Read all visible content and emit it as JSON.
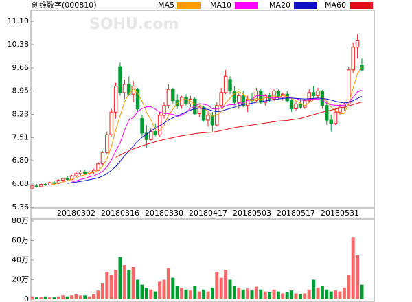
{
  "chart_data": [
    {
      "type": "candlestick",
      "title": "创维数字(000810)",
      "watermark": "SOHU.com",
      "categories": [
        null,
        null,
        null,
        null,
        null,
        null,
        null,
        null,
        null,
        null,
        "20180302",
        null,
        null,
        null,
        null,
        null,
        null,
        null,
        null,
        null,
        "20180316",
        null,
        null,
        null,
        null,
        null,
        null,
        null,
        null,
        null,
        "20180330",
        null,
        null,
        null,
        null,
        null,
        null,
        null,
        null,
        null,
        "20180417",
        null,
        null,
        null,
        null,
        null,
        null,
        null,
        null,
        null,
        "20180503",
        null,
        null,
        null,
        null,
        null,
        null,
        null,
        null,
        null,
        "20180517",
        null,
        null,
        null,
        null,
        null,
        null,
        null,
        null,
        null,
        "20180531",
        null,
        null,
        null,
        null,
        null
      ],
      "open": [
        5.95,
        6.02,
        6.0,
        6.07,
        6.05,
        6.12,
        6.1,
        6.2,
        6.25,
        6.22,
        6.33,
        6.4,
        6.45,
        6.4,
        6.45,
        6.5,
        6.7,
        7.05,
        7.6,
        8.3,
        9.7,
        8.9,
        9.15,
        8.85,
        9.0,
        8.1,
        7.65,
        7.45,
        7.7,
        7.6,
        8.2,
        8.5,
        9.0,
        8.65,
        8.5,
        8.75,
        8.55,
        8.7,
        8.25,
        8.45,
        8.05,
        8.2,
        7.9,
        8.5,
        8.9,
        9.3,
        8.95,
        8.6,
        8.8,
        8.5,
        8.7,
        8.65,
        8.95,
        8.6,
        8.8,
        8.7,
        8.95,
        8.75,
        8.85,
        8.65,
        8.4,
        8.55,
        8.45,
        8.65,
        8.9,
        8.8,
        8.95,
        8.5,
        8.05,
        7.95,
        8.3,
        8.45,
        8.55,
        9.6,
        10.3,
        9.75
      ],
      "high": [
        6.05,
        6.08,
        6.1,
        6.12,
        6.15,
        6.18,
        6.22,
        6.28,
        6.32,
        6.36,
        6.45,
        6.5,
        6.52,
        6.48,
        6.55,
        6.75,
        7.1,
        7.7,
        8.4,
        9.2,
        9.82,
        9.3,
        9.4,
        9.25,
        9.05,
        8.2,
        7.9,
        7.8,
        7.95,
        8.3,
        8.6,
        9.15,
        9.05,
        8.85,
        8.8,
        8.85,
        8.8,
        8.75,
        8.5,
        8.5,
        8.3,
        8.3,
        8.6,
        9.05,
        9.6,
        9.4,
        9.1,
        8.9,
        8.95,
        8.8,
        8.9,
        9.05,
        9.0,
        8.85,
        8.9,
        9.0,
        9.0,
        8.9,
        8.95,
        8.7,
        8.6,
        8.7,
        8.7,
        9.0,
        9.1,
        9.05,
        8.98,
        8.6,
        8.2,
        8.4,
        8.55,
        8.6,
        9.7,
        10.45,
        10.7,
        9.95
      ],
      "low": [
        5.9,
        5.97,
        5.98,
        6.02,
        6.03,
        6.08,
        6.08,
        6.15,
        6.18,
        6.2,
        6.28,
        6.35,
        6.38,
        6.36,
        6.4,
        6.48,
        6.65,
        7.0,
        7.55,
        8.1,
        8.8,
        8.7,
        8.8,
        8.6,
        8.3,
        7.55,
        7.2,
        7.4,
        7.55,
        7.55,
        8.1,
        8.4,
        8.55,
        8.4,
        8.4,
        8.5,
        8.45,
        8.2,
        8.15,
        8.0,
        7.85,
        7.7,
        7.85,
        8.4,
        8.85,
        8.85,
        8.5,
        8.4,
        8.45,
        8.3,
        8.55,
        8.6,
        8.55,
        8.5,
        8.6,
        8.65,
        8.7,
        8.65,
        8.6,
        8.3,
        8.35,
        8.4,
        8.4,
        8.6,
        8.7,
        8.75,
        8.4,
        7.9,
        7.7,
        7.9,
        8.2,
        8.35,
        8.5,
        9.5,
        9.95,
        9.55
      ],
      "close": [
        6.02,
        6.0,
        6.07,
        6.05,
        6.12,
        6.1,
        6.2,
        6.25,
        6.22,
        6.33,
        6.4,
        6.45,
        6.4,
        6.45,
        6.5,
        6.7,
        7.05,
        7.6,
        8.3,
        9.1,
        8.9,
        9.15,
        8.85,
        9.1,
        8.4,
        7.65,
        7.45,
        7.7,
        7.6,
        8.2,
        8.5,
        9.0,
        8.65,
        8.5,
        8.75,
        8.55,
        8.7,
        8.25,
        8.45,
        8.05,
        8.2,
        7.9,
        8.5,
        8.9,
        9.4,
        8.95,
        8.6,
        8.8,
        8.5,
        8.7,
        8.65,
        8.95,
        8.6,
        8.8,
        8.7,
        8.95,
        8.75,
        8.85,
        8.65,
        8.4,
        8.55,
        8.45,
        8.65,
        8.9,
        8.8,
        8.95,
        8.5,
        8.05,
        7.95,
        8.3,
        8.45,
        8.55,
        9.6,
        10.3,
        10.5,
        9.6
      ],
      "series": [
        {
          "name": "MA5",
          "color": "#ff9900",
          "values": [
            null,
            null,
            null,
            null,
            6.05,
            6.07,
            6.11,
            6.14,
            6.18,
            6.22,
            6.28,
            6.33,
            6.36,
            6.41,
            6.44,
            6.5,
            6.62,
            6.86,
            7.23,
            7.75,
            8.19,
            8.62,
            8.86,
            9.02,
            8.88,
            8.63,
            8.29,
            8.06,
            7.76,
            7.72,
            7.89,
            8.2,
            8.39,
            8.57,
            8.68,
            8.69,
            8.63,
            8.55,
            8.54,
            8.4,
            8.33,
            8.17,
            8.22,
            8.31,
            8.58,
            8.73,
            8.87,
            8.93,
            8.85,
            8.71,
            8.65,
            8.72,
            8.68,
            8.74,
            8.74,
            8.8,
            8.76,
            8.81,
            8.78,
            8.72,
            8.64,
            8.58,
            8.5,
            8.59,
            8.67,
            8.75,
            8.76,
            8.64,
            8.45,
            8.35,
            8.25,
            8.26,
            8.57,
            9.04,
            9.48,
            9.71
          ]
        },
        {
          "name": "MA10",
          "color": "#ff00ff",
          "values": [
            null,
            null,
            null,
            null,
            null,
            null,
            null,
            null,
            null,
            6.14,
            6.18,
            6.22,
            6.25,
            6.3,
            6.33,
            6.39,
            6.47,
            6.61,
            6.82,
            7.1,
            7.35,
            7.74,
            8.05,
            8.13,
            8.32,
            8.41,
            8.46,
            8.46,
            8.39,
            8.3,
            8.26,
            8.25,
            8.23,
            8.17,
            8.2,
            8.29,
            8.42,
            8.47,
            8.56,
            8.54,
            8.51,
            8.4,
            8.39,
            8.43,
            8.49,
            8.53,
            8.52,
            8.58,
            8.58,
            8.65,
            8.69,
            8.8,
            8.81,
            8.8,
            8.73,
            8.73,
            8.74,
            8.75,
            8.76,
            8.73,
            8.72,
            8.67,
            8.66,
            8.69,
            8.7,
            8.7,
            8.67,
            8.57,
            8.52,
            8.51,
            8.5,
            8.51,
            8.61,
            8.75,
            8.92,
            8.98
          ]
        },
        {
          "name": "MA20",
          "color": "#1010c8",
          "values": [
            null,
            null,
            null,
            null,
            null,
            null,
            null,
            null,
            6.1,
            6.12,
            6.14,
            6.16,
            6.18,
            6.21,
            6.24,
            6.27,
            6.32,
            6.4,
            6.5,
            6.62,
            6.78,
            6.95,
            7.1,
            7.25,
            7.4,
            7.52,
            7.62,
            7.72,
            7.8,
            7.88,
            7.96,
            8.05,
            8.12,
            8.18,
            8.24,
            8.3,
            8.36,
            8.4,
            8.42,
            8.4,
            8.38,
            8.34,
            8.31,
            8.33,
            8.37,
            8.41,
            8.45,
            8.5,
            8.53,
            8.55,
            8.57,
            8.6,
            8.62,
            8.64,
            8.66,
            8.68,
            8.7,
            8.72,
            8.73,
            8.73,
            8.72,
            8.71,
            8.7,
            8.71,
            8.72,
            8.73,
            8.72,
            8.7,
            8.67,
            8.63,
            8.6,
            8.58,
            8.6,
            8.65,
            8.72,
            8.78
          ]
        },
        {
          "name": "MA60",
          "color": "#dd1111",
          "values": [
            null,
            null,
            null,
            null,
            null,
            null,
            null,
            null,
            null,
            null,
            null,
            null,
            null,
            null,
            null,
            null,
            null,
            null,
            null,
            6.9,
            6.97,
            7.04,
            7.1,
            7.16,
            7.21,
            7.26,
            7.3,
            7.34,
            7.38,
            7.42,
            7.45,
            7.48,
            7.51,
            7.54,
            7.57,
            7.59,
            7.61,
            7.63,
            7.65,
            7.66,
            7.67,
            7.68,
            7.7,
            7.73,
            7.76,
            7.79,
            7.82,
            7.84,
            7.86,
            7.88,
            7.9,
            7.92,
            7.94,
            7.96,
            7.98,
            8.0,
            8.02,
            8.03,
            8.04,
            8.06,
            8.08,
            8.1,
            8.14,
            8.18,
            8.22,
            8.26,
            8.3,
            8.33,
            8.36,
            8.39,
            8.42,
            8.45,
            8.49,
            8.53,
            8.57,
            8.61
          ]
        }
      ],
      "up_color": "#ee2222",
      "down_color": "#009933",
      "ylim": [
        5.36,
        11.1
      ],
      "yticks": [
        {
          "value": 11.1,
          "label": "11.10"
        },
        10.38,
        9.66,
        8.95,
        8.23,
        7.51,
        {
          "value": 6.8,
          "label": "6.80"
        },
        6.08,
        5.36
      ]
    },
    {
      "type": "bar",
      "values": [
        3,
        2,
        2,
        3,
        2,
        2,
        3,
        4,
        3,
        4,
        5,
        4,
        4,
        3,
        5,
        9,
        16,
        28,
        25,
        30,
        43,
        35,
        30,
        33,
        20,
        15,
        12,
        10,
        8,
        18,
        20,
        32,
        22,
        14,
        12,
        10,
        9,
        14,
        8,
        10,
        8,
        12,
        28,
        22,
        30,
        20,
        14,
        12,
        10,
        11,
        9,
        13,
        10,
        8,
        7,
        10,
        8,
        6,
        7,
        9,
        6,
        5,
        6,
        10,
        20,
        12,
        14,
        10,
        8,
        9,
        8,
        12,
        25,
        63,
        45,
        15
      ],
      "ylim": [
        0,
        80
      ],
      "yticks": [
        0,
        {
          "value": 20,
          "label": "20万"
        },
        {
          "value": 40,
          "label": "40万"
        },
        {
          "value": 60,
          "label": "60万"
        },
        {
          "value": 80,
          "label": "80万"
        }
      ]
    }
  ]
}
